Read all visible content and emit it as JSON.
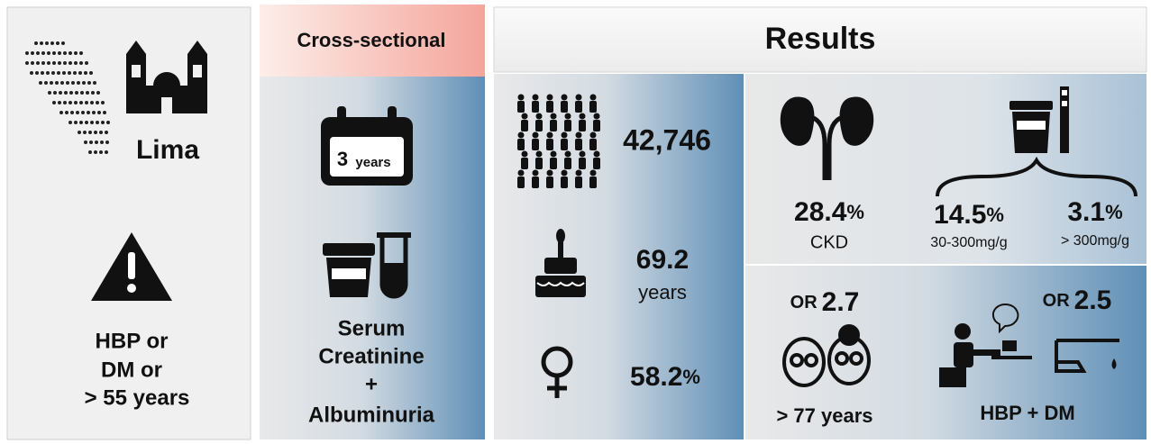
{
  "location": {
    "title": "Lima",
    "criteria": [
      "HBP or",
      "DM or",
      "> 55 years"
    ]
  },
  "design": {
    "title": "Cross-sectional",
    "duration": {
      "number": "3",
      "unit": "years"
    },
    "measures": [
      "Serum",
      "Creatinine",
      "+",
      "Albuminuria"
    ]
  },
  "results": {
    "title": "Results",
    "participants": "42,746",
    "age": {
      "value": "69.2",
      "unit": "years"
    },
    "female": {
      "value": "58.2",
      "unit": "%"
    },
    "ckd": {
      "value": "28.4",
      "unit": "%",
      "label": "CKD"
    },
    "albuminuria": [
      {
        "value": "14.5",
        "unit": "%",
        "label": "30-300mg/g"
      },
      {
        "value": "3.1",
        "unit": "%",
        "label": "> 300mg/g"
      }
    ],
    "risk_factors": [
      {
        "prefix": "OR",
        "value": "2.7",
        "label": "> 77 years"
      },
      {
        "prefix": "OR",
        "value": "2.5",
        "label": "HBP + DM"
      }
    ]
  }
}
